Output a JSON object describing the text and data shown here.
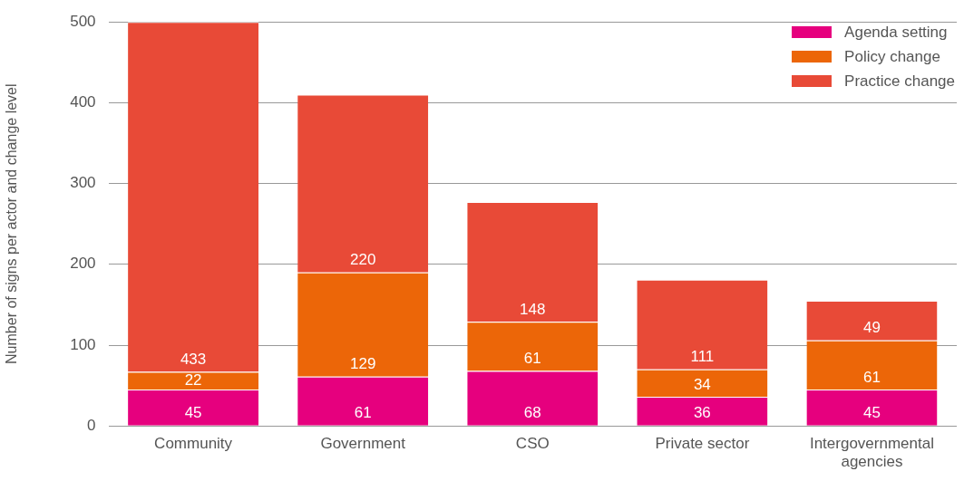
{
  "chart_data": {
    "type": "bar",
    "stacked": true,
    "ylabel": "Number of signs per actor and change level",
    "categories": [
      "Community",
      "Government",
      "CSO",
      "Private sector",
      "Intergovernmental agencies"
    ],
    "series": [
      {
        "name": "Agenda setting",
        "color": "#e6007e",
        "values": [
          45,
          61,
          68,
          36,
          45
        ]
      },
      {
        "name": "Policy change",
        "color": "#ec6608",
        "values": [
          22,
          129,
          61,
          34,
          61
        ]
      },
      {
        "name": "Practice change",
        "color": "#e84a37",
        "values": [
          433,
          220,
          148,
          111,
          49
        ]
      }
    ],
    "ylim": [
      0,
      500
    ],
    "yticks": [
      0,
      100,
      200,
      300,
      400,
      500
    ],
    "grid": "y",
    "legend": "top right",
    "data_labels": true
  }
}
